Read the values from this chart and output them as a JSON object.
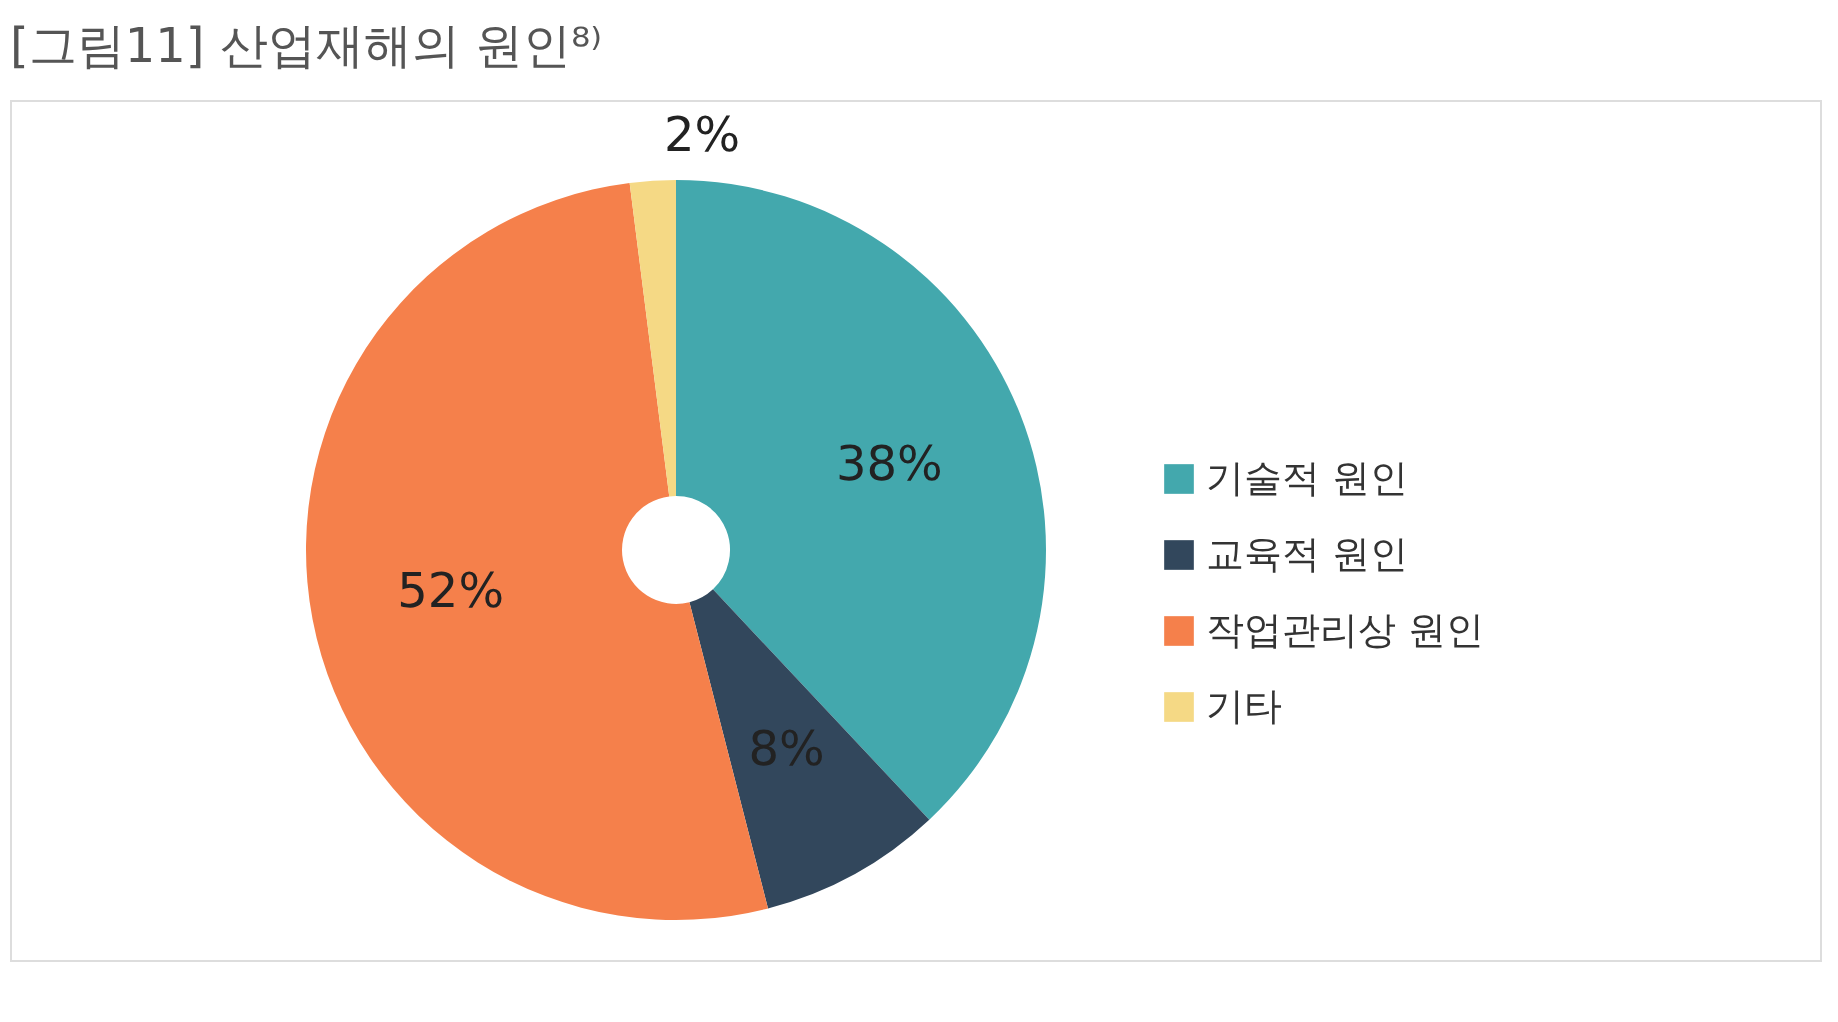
{
  "chart_data": {
    "type": "donut",
    "title": "[그림11] 산업재해의 원인⁸⁾",
    "categories": [
      "기술적 원인",
      "교육적 원인",
      "작업관리상 원인",
      "기타"
    ],
    "values": [
      38,
      8,
      52,
      2
    ],
    "colors": [
      "#43a8ad",
      "#32475c",
      "#f5804b",
      "#f5d985"
    ],
    "value_labels": [
      "38%",
      "8%",
      "52%",
      "2%"
    ],
    "legend": "right"
  }
}
